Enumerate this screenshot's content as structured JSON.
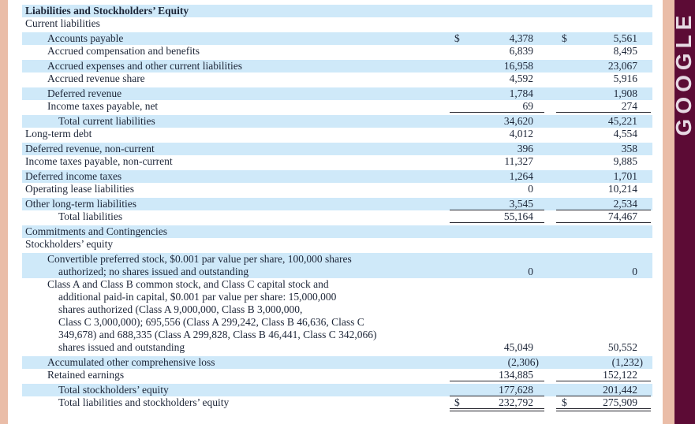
{
  "brand": {
    "text": "GOOGLE"
  },
  "colors": {
    "row_stripe_blue": "#cfe9f9",
    "sidebar_maroon": "#5c0b35",
    "edge_salmon": "#eabda8",
    "text_ink": "#1d2638",
    "rule_line": "#26262e",
    "brand_letters": "#e6d9e3"
  },
  "table": {
    "rows": [
      {
        "shade": "blue",
        "bold": true,
        "lines": [
          {
            "text": "Liabilities and Stockholders’ Equity",
            "indent": 0
          }
        ],
        "cols": null,
        "underline": "none"
      },
      {
        "shade": "white",
        "bold": false,
        "lines": [
          {
            "text": "Current liabilities",
            "indent": 0
          }
        ],
        "cols": null,
        "underline": "none"
      },
      {
        "shade": "blue",
        "bold": false,
        "lines": [
          {
            "text": "Accounts payable",
            "indent": 1
          }
        ],
        "cols": [
          {
            "dollar": "$",
            "value": "4,378"
          },
          {
            "dollar": "$",
            "value": "5,561"
          }
        ],
        "underline": "none"
      },
      {
        "shade": "white",
        "bold": false,
        "lines": [
          {
            "text": "Accrued compensation and benefits",
            "indent": 1
          }
        ],
        "cols": [
          {
            "dollar": "",
            "value": "6,839"
          },
          {
            "dollar": "",
            "value": "8,495"
          }
        ],
        "underline": "none"
      },
      {
        "shade": "blue",
        "bold": false,
        "lines": [
          {
            "text": "Accrued expenses and other current liabilities",
            "indent": 1
          }
        ],
        "cols": [
          {
            "dollar": "",
            "value": "16,958"
          },
          {
            "dollar": "",
            "value": "23,067"
          }
        ],
        "underline": "none"
      },
      {
        "shade": "white",
        "bold": false,
        "lines": [
          {
            "text": "Accrued revenue share",
            "indent": 1
          }
        ],
        "cols": [
          {
            "dollar": "",
            "value": "4,592"
          },
          {
            "dollar": "",
            "value": "5,916"
          }
        ],
        "underline": "none"
      },
      {
        "shade": "blue",
        "bold": false,
        "lines": [
          {
            "text": "Deferred revenue",
            "indent": 1
          }
        ],
        "cols": [
          {
            "dollar": "",
            "value": "1,784"
          },
          {
            "dollar": "",
            "value": "1,908"
          }
        ],
        "underline": "none"
      },
      {
        "shade": "white",
        "bold": false,
        "lines": [
          {
            "text": "Income taxes payable, net",
            "indent": 1
          }
        ],
        "cols": [
          {
            "dollar": "",
            "value": "69"
          },
          {
            "dollar": "",
            "value": "274"
          }
        ],
        "underline": "single"
      },
      {
        "shade": "blue",
        "bold": false,
        "lines": [
          {
            "text": "Total current liabilities",
            "indent": 2
          }
        ],
        "cols": [
          {
            "dollar": "",
            "value": "34,620"
          },
          {
            "dollar": "",
            "value": "45,221"
          }
        ],
        "underline": "none"
      },
      {
        "shade": "white",
        "bold": false,
        "lines": [
          {
            "text": "Long-term debt",
            "indent": 0
          }
        ],
        "cols": [
          {
            "dollar": "",
            "value": "4,012"
          },
          {
            "dollar": "",
            "value": "4,554"
          }
        ],
        "underline": "none"
      },
      {
        "shade": "blue",
        "bold": false,
        "lines": [
          {
            "text": "Deferred revenue, non-current",
            "indent": 0
          }
        ],
        "cols": [
          {
            "dollar": "",
            "value": "396"
          },
          {
            "dollar": "",
            "value": "358"
          }
        ],
        "underline": "none"
      },
      {
        "shade": "white",
        "bold": false,
        "lines": [
          {
            "text": "Income taxes payable, non-current",
            "indent": 0
          }
        ],
        "cols": [
          {
            "dollar": "",
            "value": "11,327"
          },
          {
            "dollar": "",
            "value": "9,885"
          }
        ],
        "underline": "none"
      },
      {
        "shade": "blue",
        "bold": false,
        "lines": [
          {
            "text": "Deferred income taxes",
            "indent": 0
          }
        ],
        "cols": [
          {
            "dollar": "",
            "value": "1,264"
          },
          {
            "dollar": "",
            "value": "1,701"
          }
        ],
        "underline": "none"
      },
      {
        "shade": "white",
        "bold": false,
        "lines": [
          {
            "text": "Operating lease liabilities",
            "indent": 0
          }
        ],
        "cols": [
          {
            "dollar": "",
            "value": "0"
          },
          {
            "dollar": "",
            "value": "10,214"
          }
        ],
        "underline": "none"
      },
      {
        "shade": "blue",
        "bold": false,
        "lines": [
          {
            "text": "Other long-term liabilities",
            "indent": 0
          }
        ],
        "cols": [
          {
            "dollar": "",
            "value": "3,545"
          },
          {
            "dollar": "",
            "value": "2,534"
          }
        ],
        "underline": "single"
      },
      {
        "shade": "white",
        "bold": false,
        "lines": [
          {
            "text": "Total liabilities",
            "indent": 2
          }
        ],
        "cols": [
          {
            "dollar": "",
            "value": "55,164"
          },
          {
            "dollar": "",
            "value": "74,467"
          }
        ],
        "underline": "single"
      },
      {
        "shade": "blue",
        "bold": false,
        "lines": [
          {
            "text": "Commitments and Contingencies",
            "indent": 0
          }
        ],
        "cols": null,
        "underline": "none"
      },
      {
        "shade": "white",
        "bold": false,
        "lines": [
          {
            "text": "Stockholders’ equity",
            "indent": 0
          }
        ],
        "cols": null,
        "underline": "none"
      },
      {
        "shade": "blue",
        "bold": false,
        "lines": [
          {
            "text": "Convertible preferred stock, $0.001 par value per share, 100,000 shares",
            "indent": 1
          },
          {
            "text": "authorized; no shares issued and outstanding",
            "indent": 2
          }
        ],
        "cols": [
          {
            "dollar": "",
            "value": "0"
          },
          {
            "dollar": "",
            "value": "0"
          }
        ],
        "underline": "none"
      },
      {
        "shade": "white",
        "bold": false,
        "lines": [
          {
            "text": "Class A and Class B common stock, and Class C capital stock and",
            "indent": 1
          },
          {
            "text": "additional paid-in capital, $0.001 par value per share: 15,000,000",
            "indent": 2
          },
          {
            "text": "shares authorized (Class A 9,000,000, Class B 3,000,000,",
            "indent": 2
          },
          {
            "text": "Class C 3,000,000); 695,556 (Class A 299,242, Class B 46,636, Class C",
            "indent": 2
          },
          {
            "text": "349,678) and 688,335 (Class A 299,828, Class B 46,441, Class C 342,066)",
            "indent": 2
          },
          {
            "text": "shares issued and outstanding",
            "indent": 2
          }
        ],
        "cols": [
          {
            "dollar": "",
            "value": "45,049"
          },
          {
            "dollar": "",
            "value": "50,552"
          }
        ],
        "underline": "none"
      },
      {
        "shade": "blue",
        "bold": false,
        "lines": [
          {
            "text": "Accumulated other comprehensive loss",
            "indent": 1
          }
        ],
        "cols": [
          {
            "dollar": "",
            "value": "(2,306)"
          },
          {
            "dollar": "",
            "value": "(1,232)"
          }
        ],
        "underline": "none"
      },
      {
        "shade": "white",
        "bold": false,
        "lines": [
          {
            "text": "Retained earnings",
            "indent": 1
          }
        ],
        "cols": [
          {
            "dollar": "",
            "value": "134,885"
          },
          {
            "dollar": "",
            "value": "152,122"
          }
        ],
        "underline": "single"
      },
      {
        "shade": "blue",
        "bold": false,
        "lines": [
          {
            "text": "Total stockholders’ equity",
            "indent": 2
          }
        ],
        "cols": [
          {
            "dollar": "",
            "value": "177,628"
          },
          {
            "dollar": "",
            "value": "201,442"
          }
        ],
        "underline": "single"
      },
      {
        "shade": "white",
        "bold": false,
        "lines": [
          {
            "text": "Total liabilities and stockholders’ equity",
            "indent": 2
          }
        ],
        "cols": [
          {
            "dollar": "$",
            "value": "232,792"
          },
          {
            "dollar": "$",
            "value": "275,909"
          }
        ],
        "underline": "double"
      }
    ]
  }
}
